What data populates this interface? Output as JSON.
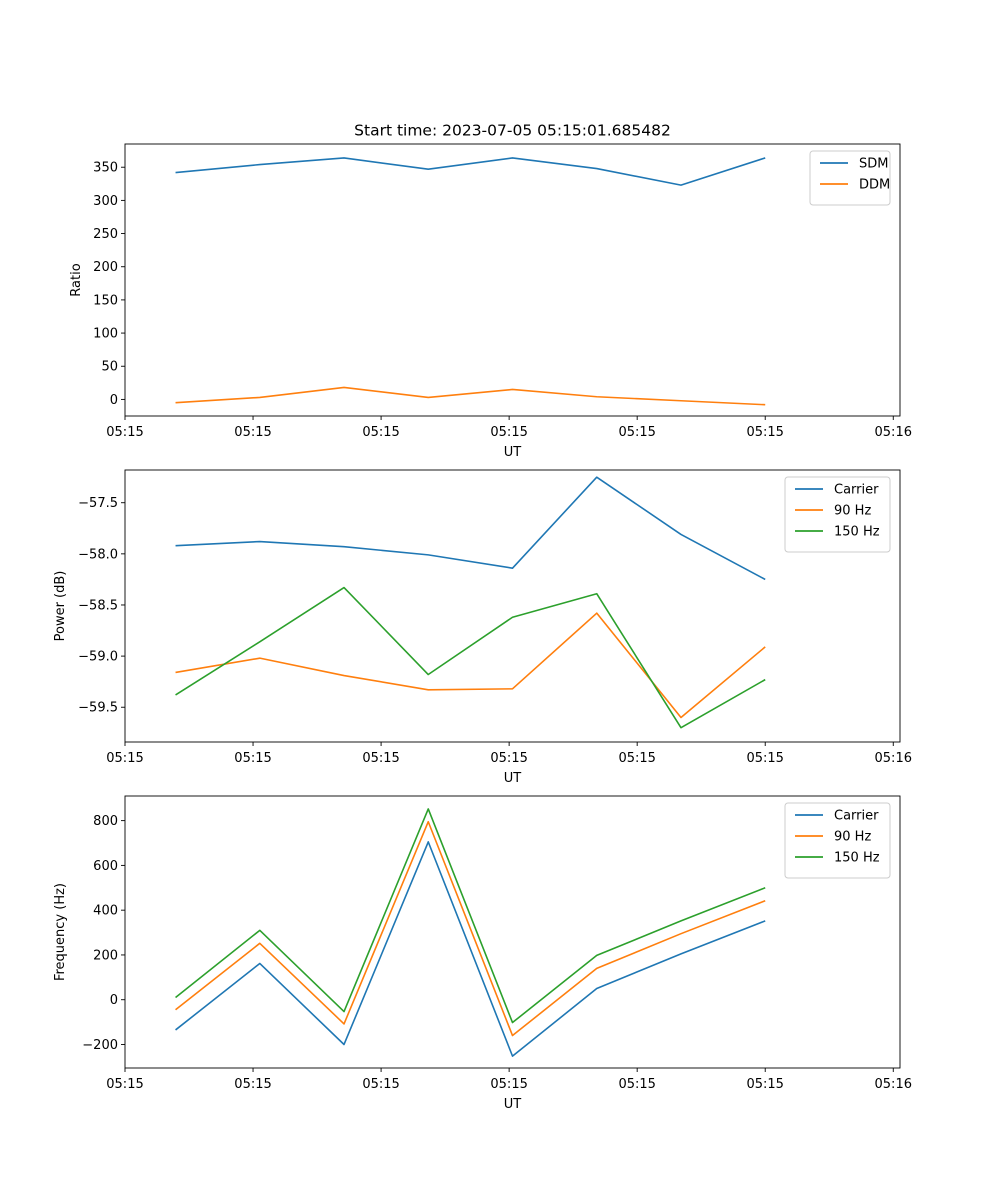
{
  "figure_title": "Start time: 2023-07-05 05:15:01.685482",
  "chart_data": [
    {
      "type": "line",
      "title": "Start time: 2023-07-05 05:15:01.685482",
      "xlabel": "UT",
      "ylabel": "Ratio",
      "xlim": [
        0.4,
        9.6
      ],
      "ylim": [
        -25,
        385
      ],
      "x_tick_positions": [
        0.4,
        1.92,
        3.44,
        4.96,
        6.48,
        8.0,
        9.52
      ],
      "x_tick_labels": [
        "05:15",
        "05:15",
        "05:15",
        "05:15",
        "05:15",
        "05:15",
        "05:16"
      ],
      "y_ticks": [
        0,
        50,
        100,
        150,
        200,
        250,
        300,
        350
      ],
      "y_tick_labels": [
        "0",
        "50",
        "100",
        "150",
        "200",
        "250",
        "300",
        "350"
      ],
      "legend_position": "top-right",
      "x": [
        1,
        2,
        3,
        4,
        5,
        6,
        7,
        8
      ],
      "series": [
        {
          "name": "SDM",
          "color": "#1f77b4",
          "values": [
            342,
            354,
            364,
            347,
            364,
            348,
            323,
            364
          ]
        },
        {
          "name": "DDM",
          "color": "#ff7f0e",
          "values": [
            -5,
            3,
            18,
            3,
            15,
            4,
            -2,
            -8
          ]
        }
      ]
    },
    {
      "type": "line",
      "title": "",
      "xlabel": "UT",
      "ylabel": "Power (dB)",
      "xlim": [
        0.4,
        9.6
      ],
      "ylim": [
        -59.84,
        -57.18
      ],
      "x_tick_positions": [
        0.4,
        1.92,
        3.44,
        4.96,
        6.48,
        8.0,
        9.52
      ],
      "x_tick_labels": [
        "05:15",
        "05:15",
        "05:15",
        "05:15",
        "05:15",
        "05:15",
        "05:16"
      ],
      "y_ticks": [
        -59.5,
        -59.0,
        -58.5,
        -58.0,
        -57.5
      ],
      "y_tick_labels": [
        "−59.5",
        "−59.0",
        "−58.5",
        "−58.0",
        "−57.5"
      ],
      "legend_position": "top-right",
      "x": [
        1,
        2,
        3,
        4,
        5,
        6,
        7,
        8
      ],
      "series": [
        {
          "name": "Carrier",
          "color": "#1f77b4",
          "values": [
            -57.92,
            -57.88,
            -57.93,
            -58.01,
            -58.14,
            -57.25,
            -57.81,
            -58.25
          ]
        },
        {
          "name": "90 Hz",
          "color": "#ff7f0e",
          "values": [
            -59.16,
            -59.02,
            -59.19,
            -59.33,
            -59.32,
            -58.58,
            -59.6,
            -58.91
          ]
        },
        {
          "name": "150 Hz",
          "color": "#2ca02c",
          "values": [
            -59.38,
            -58.86,
            -58.33,
            -59.18,
            -58.62,
            -58.39,
            -59.7,
            -59.23
          ]
        }
      ]
    },
    {
      "type": "line",
      "title": "",
      "xlabel": "UT",
      "ylabel": "Frequency (Hz)",
      "xlim": [
        0.4,
        9.6
      ],
      "ylim": [
        -305,
        910
      ],
      "x_tick_positions": [
        0.4,
        1.92,
        3.44,
        4.96,
        6.48,
        8.0,
        9.52
      ],
      "x_tick_labels": [
        "05:15",
        "05:15",
        "05:15",
        "05:15",
        "05:15",
        "05:15",
        "05:16"
      ],
      "y_ticks": [
        -200,
        0,
        200,
        400,
        600,
        800
      ],
      "y_tick_labels": [
        "−200",
        "0",
        "200",
        "400",
        "600",
        "800"
      ],
      "legend_position": "top-right",
      "x": [
        1,
        2,
        3,
        4,
        5,
        6,
        7,
        8
      ],
      "series": [
        {
          "name": "Carrier",
          "color": "#1f77b4",
          "values": [
            -135,
            162,
            -200,
            705,
            -252,
            50,
            205,
            352
          ]
        },
        {
          "name": "90 Hz",
          "color": "#ff7f0e",
          "values": [
            -45,
            252,
            -108,
            795,
            -160,
            140,
            295,
            442
          ]
        },
        {
          "name": "150 Hz",
          "color": "#2ca02c",
          "values": [
            10,
            310,
            -53,
            852,
            -102,
            198,
            352,
            500
          ]
        }
      ]
    }
  ]
}
